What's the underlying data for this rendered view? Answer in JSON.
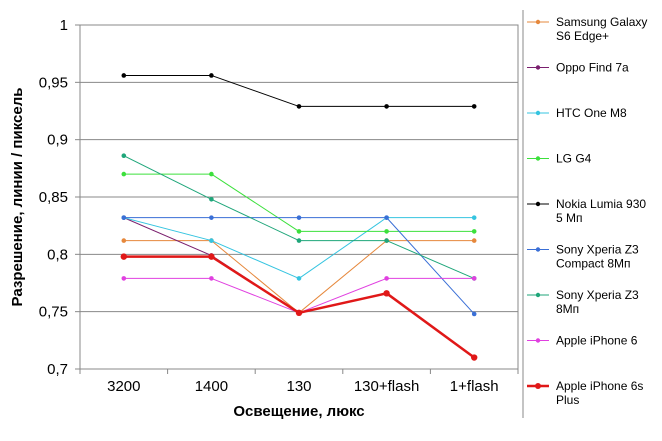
{
  "chart_data": {
    "type": "line",
    "categories": [
      "3200",
      "1400",
      "130",
      "130+flash",
      "1+flash"
    ],
    "xlabel": "Освещение,  люкс",
    "ylabel": "Разрешение,  линии / пиксель",
    "ylim": [
      0.7,
      1.0
    ],
    "yticks": [
      "0,7",
      "0,75",
      "0,8",
      "0,85",
      "0,9",
      "0,95",
      "1"
    ],
    "grid": "horizontal",
    "legend_position": "right",
    "series": [
      {
        "name": "Samsung Galaxy S6 Edge+",
        "legend_lines": [
          "Samsung Galaxy",
          "S6 Edge+"
        ],
        "color": "#e6883c",
        "width": 1,
        "values": [
          0.812,
          0.812,
          0.749,
          0.812,
          0.812
        ]
      },
      {
        "name": "Oppo Find 7a",
        "legend_lines": [
          "Oppo Find 7a"
        ],
        "color": "#7a1f6e",
        "width": 1,
        "values": [
          0.832,
          0.799,
          0.749,
          0.766,
          0.71
        ]
      },
      {
        "name": "HTC One M8",
        "legend_lines": [
          "HTC One M8"
        ],
        "color": "#35c4e0",
        "width": 1,
        "values": [
          0.832,
          0.812,
          0.779,
          0.832,
          0.832
        ]
      },
      {
        "name": "LG G4",
        "legend_lines": [
          "LG G4"
        ],
        "color": "#3ce03c",
        "width": 1,
        "values": [
          0.87,
          0.87,
          0.82,
          0.82,
          0.82
        ]
      },
      {
        "name": "Nokia Lumia 930 5 Мп",
        "legend_lines": [
          "Nokia Lumia 930",
          "5 Мп"
        ],
        "color": "#000000",
        "width": 1,
        "values": [
          0.956,
          0.956,
          0.929,
          0.929,
          0.929
        ]
      },
      {
        "name": "Sony Xperia Z3 Compact 8Мп",
        "legend_lines": [
          "Sony Xperia Z3",
          "Compact 8Мп"
        ],
        "color": "#3a6fd6",
        "width": 1,
        "values": [
          0.832,
          0.832,
          0.832,
          0.832,
          0.748
        ]
      },
      {
        "name": "Sony Xperia Z3 8Мп",
        "legend_lines": [
          "Sony Xperia Z3",
          "8Мп"
        ],
        "color": "#1fa67a",
        "width": 1,
        "values": [
          0.886,
          0.848,
          0.812,
          0.812,
          0.779
        ]
      },
      {
        "name": "Apple iPhone 6",
        "legend_lines": [
          "Apple iPhone 6"
        ],
        "color": "#e040e0",
        "width": 1,
        "values": [
          0.779,
          0.779,
          0.749,
          0.779,
          0.779
        ]
      },
      {
        "name": "Apple iPhone 6s Plus",
        "legend_lines": [
          "Apple iPhone 6s",
          "Plus"
        ],
        "color": "#e01818",
        "width": 2.5,
        "values": [
          0.798,
          0.798,
          0.749,
          0.766,
          0.71
        ]
      }
    ]
  }
}
